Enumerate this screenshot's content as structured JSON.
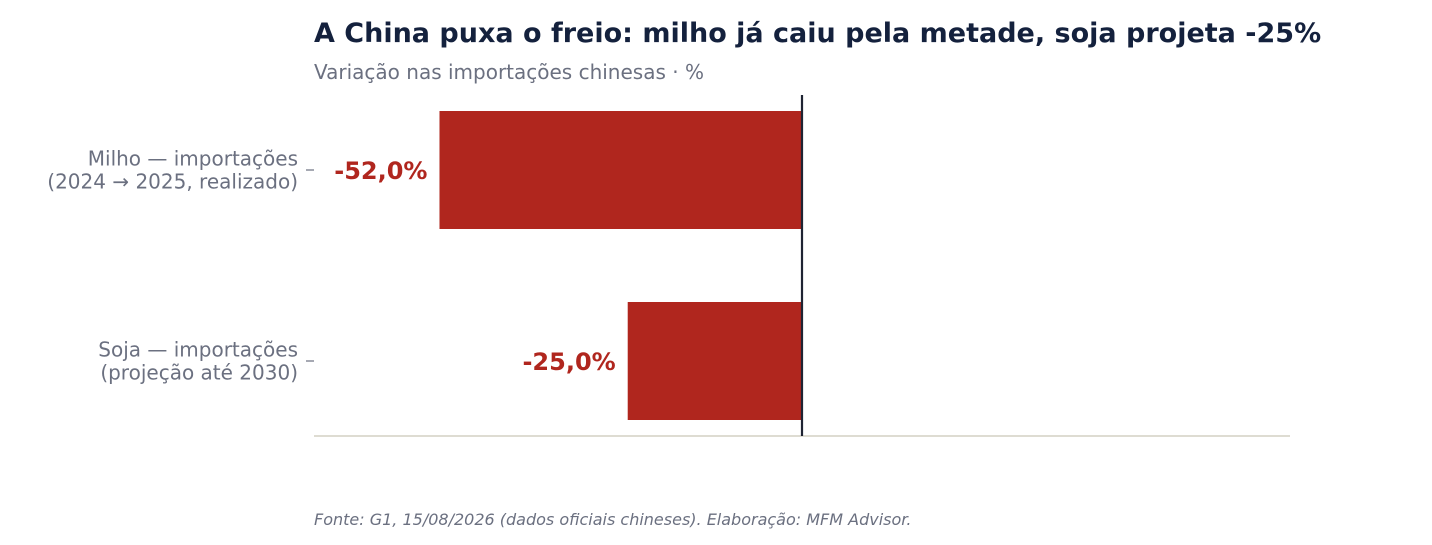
{
  "chart_data": {
    "type": "bar",
    "orientation": "horizontal",
    "title": "A China puxa o freio: milho já caiu pela metade, soja projeta -25%",
    "subtitle": "Variação nas importações chinesas · %",
    "categories": [
      [
        "Milho — importações",
        "(2024 → 2025, realizado)"
      ],
      [
        "Soja — importações",
        "(projeção até 2030)"
      ]
    ],
    "values": [
      -52.0,
      -25.0
    ],
    "value_labels": [
      "-52,0%",
      "-25,0%"
    ],
    "xlim": [
      -70,
      70
    ],
    "xlabel": "",
    "ylabel": "",
    "grid": false,
    "bar_color": "#b0261e",
    "source": "Fonte: G1, 15/08/2026 (dados oficiais chineses). Elaboração: MFM Advisor."
  },
  "colors": {
    "title": "#14213d",
    "muted": "#6b7080",
    "zero_line": "#1f2433",
    "baseline": "#d4d0c4",
    "value_label": "#b0261e"
  }
}
